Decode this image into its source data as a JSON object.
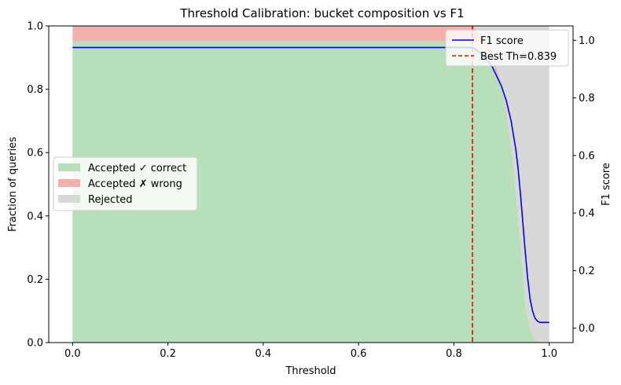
{
  "chart_data": {
    "type": "area",
    "title": "Threshold Calibration: bucket composition vs F1",
    "xlabel": "Threshold",
    "ylabel": "Fraction of queries",
    "y2label": "F1 score",
    "xlim": [
      -0.05,
      1.05
    ],
    "ylim": [
      0,
      1
    ],
    "y2lim": [
      -0.05,
      1.05
    ],
    "xticks": [
      0.0,
      0.2,
      0.4,
      0.6,
      0.8,
      1.0
    ],
    "xtick_labels": [
      "0.0",
      "0.2",
      "0.4",
      "0.6",
      "0.8",
      "1.0"
    ],
    "yticks": [
      0.0,
      0.2,
      0.4,
      0.6,
      0.8,
      1.0
    ],
    "ytick_labels": [
      "0.0",
      "0.2",
      "0.4",
      "0.6",
      "0.8",
      "1.0"
    ],
    "y2ticks": [
      0.0,
      0.2,
      0.4,
      0.6,
      0.8,
      1.0
    ],
    "y2tick_labels": [
      "0.0",
      "0.2",
      "0.4",
      "0.6",
      "0.8",
      "1.0"
    ],
    "grid": false,
    "x": [
      0.0,
      0.84,
      0.86,
      0.88,
      0.9,
      0.91,
      0.92,
      0.93,
      0.94,
      0.95,
      0.96,
      0.97,
      0.98,
      0.99,
      1.0
    ],
    "series": [
      {
        "name": "Accepted ✓ correct",
        "kind": "stacked-area",
        "color": "#b7dfb9",
        "values": [
          0.952,
          0.952,
          0.94,
          0.9,
          0.8,
          0.72,
          0.62,
          0.48,
          0.3,
          0.12,
          0.04,
          0.01,
          0.0,
          0.0,
          0.0
        ]
      },
      {
        "name": "Accepted ✗ wrong",
        "kind": "stacked-area",
        "color": "#f4b0aa",
        "values": [
          0.048,
          0.048,
          0.03,
          0.02,
          0.01,
          0.008,
          0.005,
          0.003,
          0.002,
          0.001,
          0.0,
          0.0,
          0.0,
          0.0,
          0.0
        ]
      },
      {
        "name": "Rejected",
        "kind": "stacked-area",
        "color": "#d8d8d8",
        "values": [
          0.0,
          0.0,
          0.03,
          0.08,
          0.19,
          0.272,
          0.375,
          0.517,
          0.698,
          0.879,
          0.96,
          0.99,
          1.0,
          1.0,
          1.0
        ]
      }
    ],
    "f1_line": {
      "name": "F1 score",
      "color": "#0000ff",
      "axis": "right",
      "x": [
        0.0,
        0.84,
        0.86,
        0.88,
        0.9,
        0.91,
        0.92,
        0.93,
        0.935,
        0.94,
        0.945,
        0.95,
        0.955,
        0.96,
        0.965,
        0.97,
        0.975,
        0.98,
        0.99,
        1.0
      ],
      "values": [
        0.975,
        0.975,
        0.95,
        0.91,
        0.84,
        0.79,
        0.72,
        0.62,
        0.55,
        0.46,
        0.36,
        0.26,
        0.17,
        0.1,
        0.06,
        0.035,
        0.025,
        0.02,
        0.02,
        0.02
      ]
    },
    "best_threshold": {
      "name": "Best Th=0.839",
      "value": 0.839,
      "color": "#ff0000",
      "style": "dashed"
    },
    "legend_left": {
      "placement": "center-left",
      "entries": [
        "Accepted ✓ correct",
        "Accepted ✗ wrong",
        "Rejected"
      ]
    },
    "legend_right": {
      "placement": "top-right",
      "entries": [
        "F1 score",
        "Best Th=0.839"
      ]
    }
  }
}
